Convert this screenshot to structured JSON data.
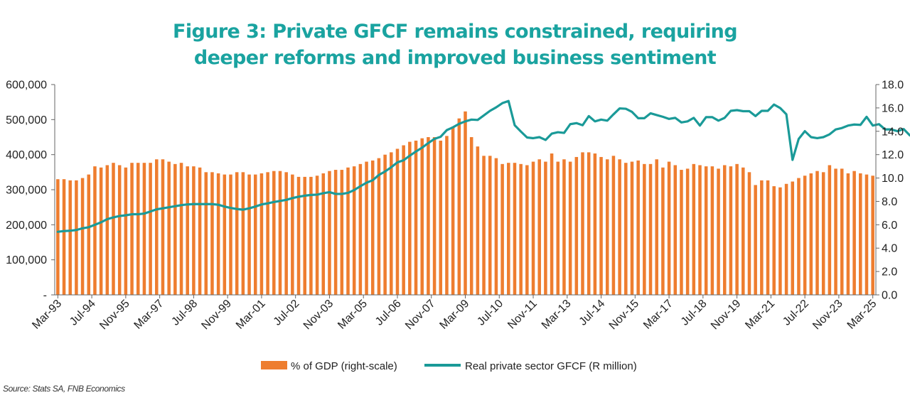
{
  "title_line1": "Figure 3: Private GFCF remains constrained, requiring",
  "title_line2": "deeper reforms and improved business sentiment",
  "source": "Source: Stats SA, FNB Economics",
  "colors": {
    "title": "#1aa3a0",
    "bars": "#ee7d2f",
    "line": "#1a9a98"
  },
  "chart_data": {
    "type": "bar+line",
    "title": "Figure 3: Private GFCF remains constrained, requiring deeper reforms and improved business sentiment",
    "legend": [
      "% of GDP (right-scale)",
      "Real private sector GFCF (R million)"
    ],
    "legend_position": "bottom",
    "x_start": "Mar-93",
    "x_end": "Mar-25",
    "frequency": "quarterly",
    "x_tick_labels": [
      "Mar-93",
      "Jul-94",
      "Nov-95",
      "Mar-97",
      "Jul-98",
      "Nov-99",
      "Mar-01",
      "Jul-02",
      "Nov-03",
      "Mar-05",
      "Jul-06",
      "Nov-07",
      "Mar-09",
      "Jul-10",
      "Nov-11",
      "Mar-13",
      "Jul-14",
      "Nov-15",
      "Mar-17",
      "Jul-18",
      "Nov-19",
      "Mar-21",
      "Jul-22",
      "Nov-23",
      "Mar-25"
    ],
    "y_left": {
      "label": "",
      "ylim": [
        0,
        600000
      ],
      "ticks": [
        "-",
        "100,000",
        "200,000",
        "300,000",
        "400,000",
        "500,000",
        "600,000"
      ]
    },
    "y_right": {
      "label": "",
      "ylim": [
        0,
        18
      ],
      "ticks": [
        "0.0",
        "2.0",
        "4.0",
        "6.0",
        "8.0",
        "10.0",
        "12.0",
        "14.0",
        "16.0",
        "18.0"
      ]
    },
    "grid": false,
    "series": [
      {
        "name": "% of GDP (right-scale)",
        "type": "bar",
        "axis": "right",
        "values": [
          9.9,
          9.9,
          9.8,
          9.8,
          10.0,
          10.3,
          11.0,
          10.9,
          11.1,
          11.3,
          11.1,
          10.9,
          11.3,
          11.3,
          11.3,
          11.3,
          11.6,
          11.6,
          11.4,
          11.2,
          11.3,
          11.0,
          11.0,
          10.9,
          10.5,
          10.5,
          10.4,
          10.3,
          10.3,
          10.5,
          10.5,
          10.3,
          10.3,
          10.4,
          10.5,
          10.6,
          10.6,
          10.5,
          10.3,
          10.1,
          10.1,
          10.1,
          10.2,
          10.4,
          10.6,
          10.7,
          10.7,
          10.9,
          11.0,
          11.2,
          11.4,
          11.5,
          11.7,
          12.0,
          12.2,
          12.5,
          12.8,
          13.1,
          13.2,
          13.4,
          13.5,
          13.5,
          13.2,
          13.6,
          14.4,
          15.1,
          15.7,
          13.5,
          12.7,
          11.9,
          11.9,
          11.7,
          11.2,
          11.3,
          11.3,
          11.2,
          11.1,
          11.4,
          11.6,
          11.4,
          12.1,
          11.4,
          11.6,
          11.4,
          11.8,
          12.2,
          12.2,
          12.1,
          11.8,
          11.6,
          11.9,
          11.6,
          11.3,
          11.4,
          11.5,
          11.2,
          11.2,
          11.6,
          10.9,
          11.4,
          11.1,
          10.7,
          10.8,
          11.2,
          11.1,
          11.0,
          11.0,
          10.8,
          11.1,
          11.0,
          11.2,
          10.9,
          10.5,
          9.4,
          9.8,
          9.8,
          9.3,
          9.2,
          9.5,
          9.7,
          10.0,
          10.2,
          10.4,
          10.6,
          10.5,
          11.1,
          10.8,
          10.8,
          10.4,
          10.6,
          10.4,
          10.3,
          10.2
        ]
      },
      {
        "name": "Real private sector GFCF (R million)",
        "type": "line",
        "axis": "left",
        "values": [
          180000,
          182000,
          183000,
          185000,
          190000,
          193000,
          200000,
          207000,
          216000,
          221000,
          225000,
          227000,
          230000,
          230000,
          232000,
          238000,
          244000,
          247000,
          250000,
          253000,
          256000,
          258000,
          259000,
          259000,
          259000,
          259000,
          257000,
          252000,
          248000,
          245000,
          243000,
          247000,
          252000,
          258000,
          261000,
          265000,
          268000,
          271000,
          276000,
          280000,
          283000,
          285000,
          286000,
          290000,
          293000,
          288000,
          288000,
          291000,
          299000,
          310000,
          320000,
          327000,
          342000,
          352000,
          364000,
          378000,
          384000,
          397000,
          409000,
          420000,
          433000,
          445000,
          451000,
          470000,
          478000,
          488000,
          495000,
          500000,
          499000,
          512000,
          525000,
          535000,
          547000,
          553000,
          484000,
          466000,
          449000,
          447000,
          450000,
          442000,
          460000,
          464000,
          462000,
          487000,
          490000,
          484000,
          510000,
          495000,
          500000,
          497000,
          515000,
          532000,
          531000,
          522000,
          504000,
          504000,
          518000,
          513000,
          508000,
          502000,
          505000,
          492000,
          495000,
          505000,
          483000,
          507000,
          507000,
          497000,
          505000,
          525000,
          527000,
          524000,
          524000,
          510000,
          525000,
          525000,
          543000,
          533000,
          515000,
          385000,
          445000,
          467000,
          450000,
          447000,
          450000,
          458000,
          472000,
          476000,
          483000,
          486000,
          485000,
          508000,
          483000,
          487000,
          472000,
          472000,
          467000,
          473000,
          455000
        ]
      }
    ]
  }
}
